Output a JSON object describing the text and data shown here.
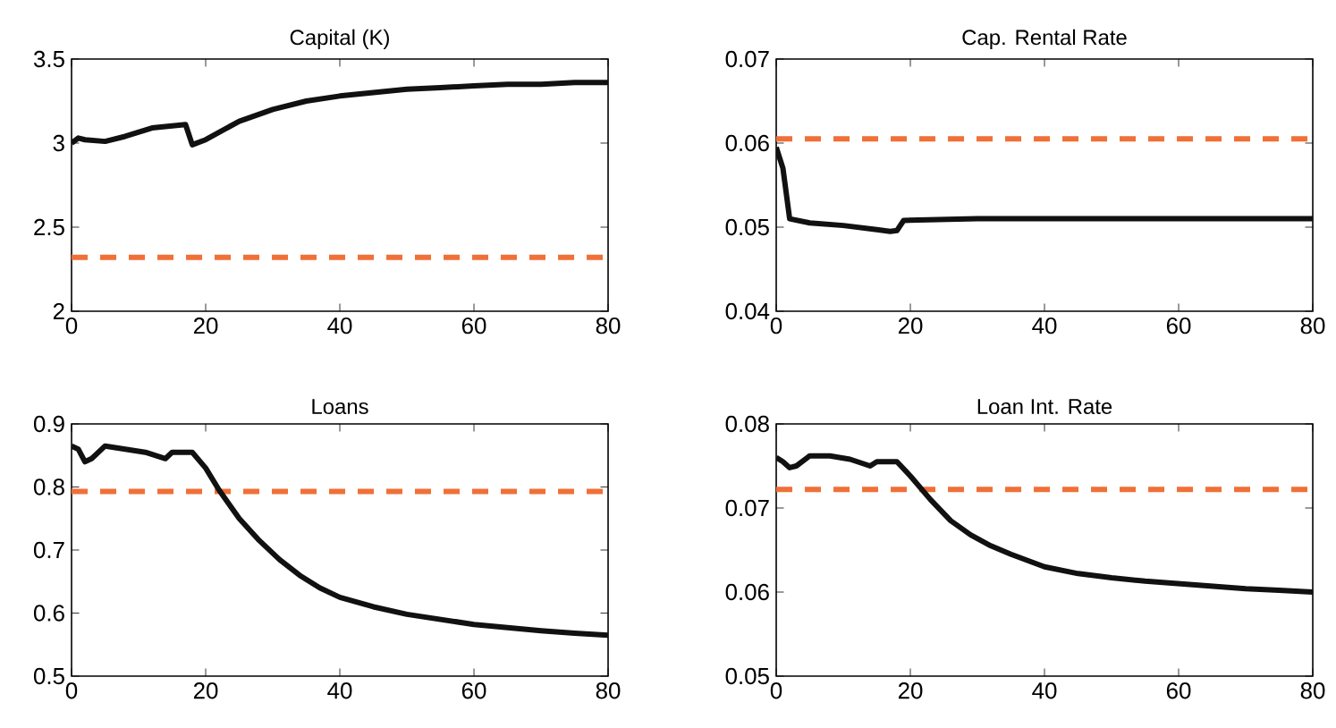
{
  "chart_data": [
    {
      "type": "line",
      "title": "Capital (K)",
      "xlim": [
        0,
        80
      ],
      "xticks": [
        0,
        20,
        40,
        60,
        80
      ],
      "ylim": [
        2,
        3.5
      ],
      "yticks": [
        2,
        2.5,
        3,
        3.5
      ],
      "grid": false,
      "series": [
        {
          "color": "#111111",
          "x": [
            0,
            1,
            2,
            5,
            8,
            12,
            17,
            18,
            20,
            25,
            30,
            35,
            40,
            45,
            50,
            55,
            60,
            65,
            70,
            75,
            80
          ],
          "values": [
            3.0,
            3.03,
            3.02,
            3.01,
            3.04,
            3.09,
            3.11,
            2.99,
            3.02,
            3.13,
            3.2,
            3.25,
            3.28,
            3.3,
            3.32,
            3.33,
            3.34,
            3.35,
            3.35,
            3.36,
            3.36
          ]
        }
      ],
      "ref_lines": [
        {
          "axis": "y",
          "value": 2.32,
          "color": "#f07038",
          "line_style": "dashed"
        }
      ]
    },
    {
      "type": "line",
      "title": "Cap. Rental Rate",
      "xlim": [
        0,
        80
      ],
      "xticks": [
        0,
        20,
        40,
        60,
        80
      ],
      "ylim": [
        0.04,
        0.07
      ],
      "yticks": [
        0.04,
        0.05,
        0.06,
        0.07
      ],
      "grid": false,
      "series": [
        {
          "color": "#111111",
          "x": [
            0,
            1,
            2,
            5,
            10,
            15,
            17,
            18,
            19,
            30,
            40,
            80
          ],
          "values": [
            0.0595,
            0.057,
            0.051,
            0.0505,
            0.0502,
            0.0497,
            0.0495,
            0.0496,
            0.0508,
            0.051,
            0.051,
            0.051
          ]
        }
      ],
      "ref_lines": [
        {
          "axis": "y",
          "value": 0.0605,
          "color": "#f07038",
          "line_style": "dashed"
        }
      ]
    },
    {
      "type": "line",
      "title": "Loans",
      "xlim": [
        0,
        80
      ],
      "xticks": [
        0,
        20,
        40,
        60,
        80
      ],
      "ylim": [
        0.5,
        0.9
      ],
      "yticks": [
        0.5,
        0.6,
        0.7,
        0.8,
        0.9
      ],
      "grid": false,
      "series": [
        {
          "color": "#111111",
          "x": [
            0,
            1,
            2,
            3,
            5,
            8,
            11,
            14,
            15,
            18,
            20,
            22,
            25,
            28,
            31,
            34,
            37,
            40,
            45,
            50,
            55,
            60,
            65,
            70,
            75,
            80
          ],
          "values": [
            0.865,
            0.86,
            0.84,
            0.845,
            0.865,
            0.86,
            0.855,
            0.845,
            0.855,
            0.855,
            0.83,
            0.795,
            0.75,
            0.715,
            0.685,
            0.66,
            0.64,
            0.625,
            0.61,
            0.598,
            0.59,
            0.582,
            0.577,
            0.572,
            0.568,
            0.565
          ]
        }
      ],
      "ref_lines": [
        {
          "axis": "y",
          "value": 0.793,
          "color": "#f07038",
          "line_style": "dashed"
        }
      ]
    },
    {
      "type": "line",
      "title": "Loan Int. Rate",
      "xlim": [
        0,
        80
      ],
      "xticks": [
        0,
        20,
        40,
        60,
        80
      ],
      "ylim": [
        0.05,
        0.08
      ],
      "yticks": [
        0.05,
        0.06,
        0.07,
        0.08
      ],
      "grid": false,
      "series": [
        {
          "color": "#111111",
          "x": [
            0,
            1,
            2,
            3,
            5,
            8,
            11,
            14,
            15,
            18,
            20,
            23,
            26,
            29,
            32,
            35,
            40,
            45,
            50,
            55,
            60,
            65,
            70,
            75,
            80
          ],
          "values": [
            0.076,
            0.0755,
            0.0748,
            0.075,
            0.0762,
            0.0762,
            0.0758,
            0.075,
            0.0755,
            0.0755,
            0.0738,
            0.071,
            0.0685,
            0.0668,
            0.0655,
            0.0645,
            0.063,
            0.0622,
            0.0617,
            0.0613,
            0.061,
            0.0607,
            0.0604,
            0.0602,
            0.06
          ]
        }
      ],
      "ref_lines": [
        {
          "axis": "y",
          "value": 0.0722,
          "color": "#f07038",
          "line_style": "dashed"
        }
      ]
    }
  ]
}
